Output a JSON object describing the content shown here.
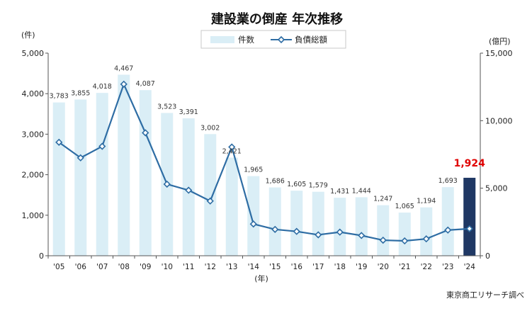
{
  "chart_data": {
    "type": "bar+line",
    "title": "建設業の倒産 年次推移",
    "categories": [
      "'05",
      "'06",
      "'07",
      "'08",
      "'09",
      "'10",
      "'11",
      "'12",
      "'13",
      "'14",
      "'15",
      "'16",
      "'17",
      "'18",
      "'19",
      "'20",
      "'21",
      "'22",
      "'23",
      "'24"
    ],
    "series": [
      {
        "name": "件数",
        "type": "bar",
        "axis": "left",
        "color": "#daeef6",
        "highlight_color": "#1f3864",
        "values": [
          3783,
          3855,
          4018,
          4467,
          4087,
          3523,
          3391,
          3002,
          2421,
          1965,
          1686,
          1605,
          1579,
          1431,
          1444,
          1247,
          1065,
          1194,
          1693,
          1924
        ],
        "labels": [
          "3,783",
          "3,855",
          "4,018",
          "4,467",
          "4,087",
          "3,523",
          "3,391",
          "3,002",
          "2,421",
          "1,965",
          "1,686",
          "1,605",
          "1,579",
          "1,431",
          "1,444",
          "1,247",
          "1,065",
          "1,194",
          "1,693",
          "1,924"
        ]
      },
      {
        "name": "負債総額",
        "type": "line",
        "axis": "right",
        "color": "#2e6da4",
        "values": [
          8400,
          7250,
          8100,
          12700,
          9100,
          5300,
          4850,
          4050,
          8050,
          2350,
          1950,
          1800,
          1550,
          1750,
          1500,
          1150,
          1100,
          1250,
          1900,
          2000
        ]
      }
    ],
    "y_left": {
      "unit": "(件)",
      "min": 0,
      "max": 5000,
      "ticks": [
        "0",
        "1,000",
        "2,000",
        "3,000",
        "4,000",
        "5,000"
      ]
    },
    "y_right": {
      "unit": "(億円)",
      "min": 0,
      "max": 15000,
      "ticks": [
        "0",
        "5,000",
        "10,000",
        "15,000"
      ]
    },
    "x_unit": "(年)",
    "highlight": {
      "index": 19,
      "label": "1,924",
      "color": "#e00000"
    },
    "legend": {
      "position": "top-center"
    },
    "grid": false
  },
  "source": "東京商工リサーチ調べ"
}
